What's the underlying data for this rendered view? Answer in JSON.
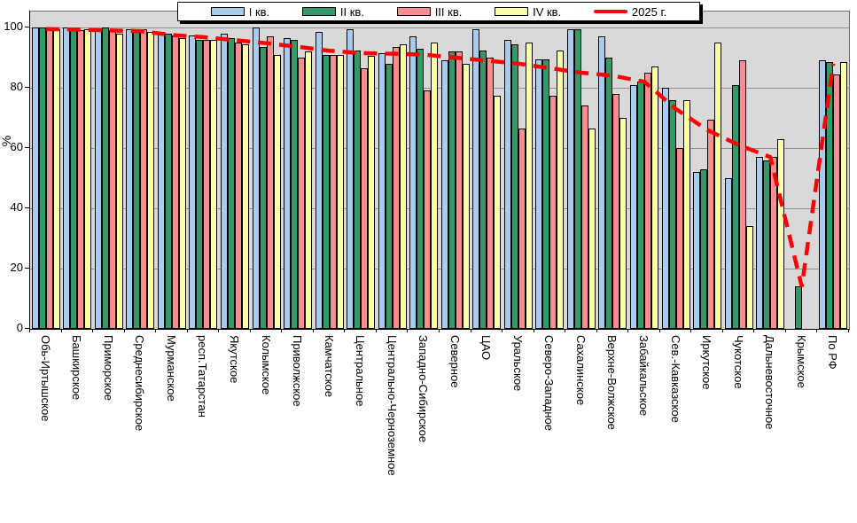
{
  "chart_data": {
    "type": "bar",
    "title": "",
    "ylabel": "%",
    "ylim": [
      0,
      100
    ],
    "yticks": [
      0,
      20,
      40,
      60,
      80,
      100
    ],
    "grid": true,
    "legend_position": "top",
    "plot_bg": "#D9D9D9",
    "categories": [
      "Обь-Иртышское",
      "Башкирское",
      "Приморское",
      "Среднесибирское",
      "Мурманское",
      "респ.Татарстан",
      "Якутское",
      "Колымское",
      "Приволжское",
      "Камчатское",
      "Центральное",
      "Центрально-Черноземное",
      "Западно-Сибирское",
      "Северное",
      "ЦАО",
      "Уральское",
      "Северо-Западное",
      "Сахалинское",
      "Верхне-Волжское",
      "Забайкальское",
      "Сев.-Кавказское",
      "Иркутское",
      "Чукотское",
      "Дальневосточное",
      "Крымское",
      "По РФ"
    ],
    "series": [
      {
        "name": "I кв.",
        "color": "#A8CBF0",
        "values": [
          100,
          100,
          99.5,
          99.5,
          98.5,
          97.5,
          98,
          100,
          96.5,
          98.5,
          99.5,
          91.5,
          97,
          89,
          99.5,
          96,
          89.5,
          99.5,
          97,
          81,
          80,
          52,
          50,
          57,
          null,
          89
        ]
      },
      {
        "name": "II кв.",
        "color": "#339966",
        "values": [
          100,
          99.5,
          100,
          99.5,
          98,
          96,
          96.5,
          93.5,
          96,
          91,
          92.5,
          88,
          93,
          92,
          92.5,
          94.5,
          89.5,
          99.5,
          90,
          82,
          76,
          53,
          81,
          56,
          14,
          88.5
        ]
      },
      {
        "name": "III кв.",
        "color": "#F88E8E",
        "values": [
          99.5,
          99,
          99,
          99.5,
          97.5,
          96,
          95,
          97,
          90,
          91,
          86.5,
          93.5,
          79,
          92,
          90,
          66.5,
          77.5,
          74,
          78,
          85,
          60,
          69.5,
          89,
          57,
          null,
          84.5
        ]
      },
      {
        "name": "IV кв.",
        "color": "#FFFFA6",
        "values": [
          99.5,
          99.5,
          98,
          98.5,
          96.5,
          96,
          94.5,
          91,
          92,
          91,
          90.5,
          94.5,
          95,
          88,
          77.5,
          95,
          92.5,
          66.5,
          70,
          87,
          76,
          95,
          34,
          63,
          null,
          88.5
        ]
      }
    ],
    "line_series": {
      "name": "2025 г.",
      "color": "#FF0000",
      "values": [
        99.5,
        99.3,
        99,
        98.8,
        97.5,
        96.8,
        95.8,
        94.8,
        93.6,
        92.3,
        91.5,
        91.3,
        91,
        90,
        89,
        88,
        86.5,
        85,
        84,
        82,
        73,
        66,
        61,
        57,
        14,
        88
      ]
    }
  }
}
